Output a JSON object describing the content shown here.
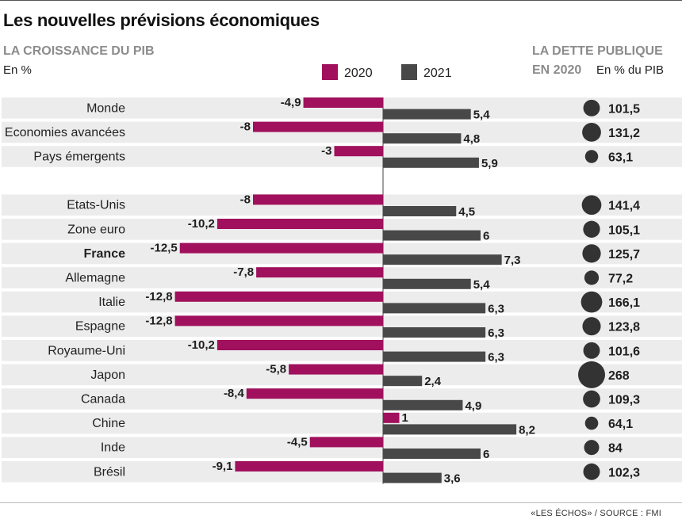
{
  "title": "Les nouvelles prévisions économiques",
  "left_subtitle": "LA CROISSANCE DU PIB",
  "left_unit": "En %",
  "right_subtitle_line1": "LA DETTE PUBLIQUE",
  "right_subtitle_line2": "EN 2020",
  "right_unit": "En % du PIB",
  "source": "«LES ÉCHOS»  / SOURCE : FMI",
  "colors": {
    "series_2020": "#a0105c",
    "series_2021": "#484848",
    "row_band": "#ececec",
    "bubble": "#333333"
  },
  "chart_data": {
    "type": "bar",
    "orientation": "horizontal",
    "categories": [
      "Monde",
      "Economies avancées",
      "Pays émergents",
      "Etats-Unis",
      "Zone euro",
      "France",
      "Allemagne",
      "Italie",
      "Espagne",
      "Royaume-Uni",
      "Japon",
      "Canada",
      "Chine",
      "Inde",
      "Brésil"
    ],
    "highlight": "France",
    "series": [
      {
        "name": "2020",
        "values": [
          -4.9,
          -8,
          -3,
          -8,
          -10.2,
          -12.5,
          -7.8,
          -12.8,
          -12.8,
          -10.2,
          -5.8,
          -8.4,
          1,
          -4.5,
          -9.1
        ],
        "labels": [
          "-4,9",
          "-8",
          "-3",
          "-8",
          "-10,2",
          "-12,5",
          "-7,8",
          "-12,8",
          "-12,8",
          "-10,2",
          "-5,8",
          "-8,4",
          "1",
          "-4,5",
          "-9,1"
        ]
      },
      {
        "name": "2021",
        "values": [
          5.4,
          4.8,
          5.9,
          4.5,
          6,
          7.3,
          5.4,
          6.3,
          6.3,
          6.3,
          2.4,
          4.9,
          8.2,
          6,
          3.6
        ],
        "labels": [
          "5,4",
          "4,8",
          "5,9",
          "4,5",
          "6",
          "7,3",
          "5,4",
          "6,3",
          "6,3",
          "6,3",
          "2,4",
          "4,9",
          "8,2",
          "6",
          "3,6"
        ]
      }
    ],
    "debt_2020": {
      "type": "bubble",
      "values": [
        101.5,
        131.2,
        63.1,
        141.4,
        105.1,
        125.7,
        77.2,
        166.1,
        123.8,
        101.6,
        268,
        109.3,
        64.1,
        84,
        102.3
      ],
      "labels": [
        "101,5",
        "131,2",
        "63,1",
        "141,4",
        "105,1",
        "125,7",
        "77,2",
        "166,1",
        "123,8",
        "101,6",
        "268",
        "109,3",
        "64,1",
        "84",
        "102,3"
      ]
    }
  }
}
